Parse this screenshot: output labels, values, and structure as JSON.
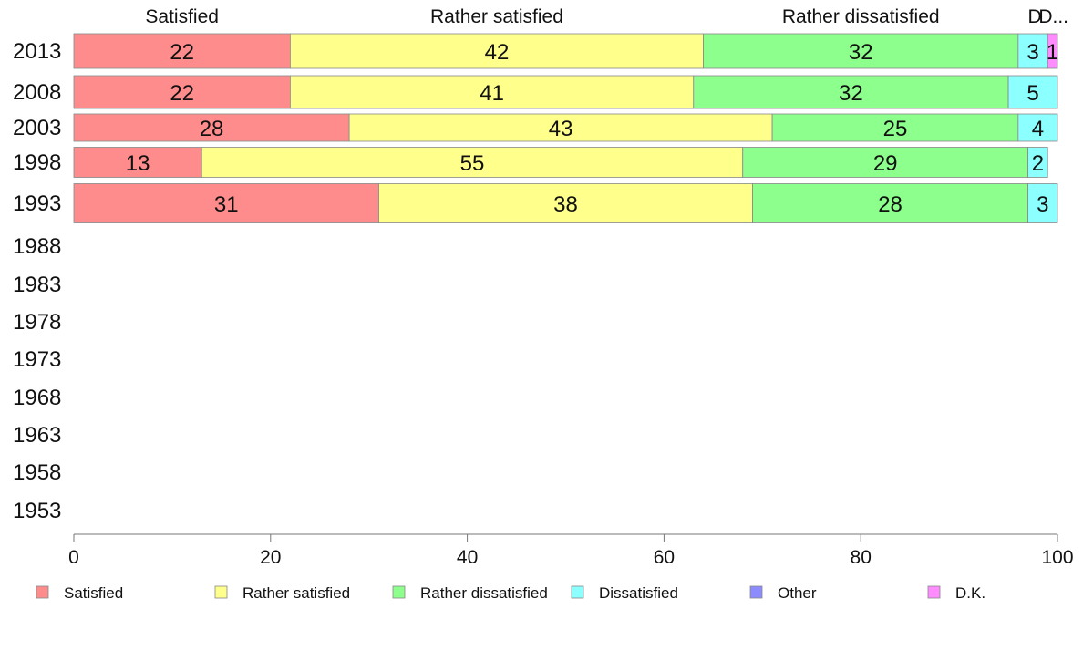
{
  "chart_data": {
    "type": "bar",
    "orientation": "horizontal",
    "stacked": true,
    "categories": [
      "2013",
      "2008",
      "2003",
      "1998",
      "1993",
      "1988",
      "1983",
      "1978",
      "1973",
      "1968",
      "1963",
      "1958",
      "1953"
    ],
    "series": [
      {
        "name": "Satisfied",
        "color": "#ff8c8c",
        "values": [
          22,
          22,
          28,
          13,
          31,
          null,
          null,
          null,
          null,
          null,
          null,
          null,
          null
        ]
      },
      {
        "name": "Rather satisfied",
        "color": "#ffff8c",
        "values": [
          42,
          41,
          43,
          55,
          38,
          null,
          null,
          null,
          null,
          null,
          null,
          null,
          null
        ]
      },
      {
        "name": "Rather dissatisfied",
        "color": "#8cff8c",
        "values": [
          32,
          32,
          25,
          29,
          28,
          null,
          null,
          null,
          null,
          null,
          null,
          null,
          null
        ]
      },
      {
        "name": "Dissatisfied",
        "color": "#8cffff",
        "values": [
          3,
          5,
          4,
          2,
          3,
          null,
          null,
          null,
          null,
          null,
          null,
          null,
          null
        ]
      },
      {
        "name": "Other",
        "color": "#8c8cff",
        "values": [
          0,
          0,
          0,
          0,
          0,
          null,
          null,
          null,
          null,
          null,
          null,
          null,
          null
        ]
      },
      {
        "name": "D.K.",
        "color": "#ff8cff",
        "values": [
          1,
          0,
          0,
          0,
          0,
          null,
          null,
          null,
          null,
          null,
          null,
          null,
          null
        ]
      }
    ],
    "top_labels": [
      "Satisfied",
      "Rather satisfied",
      "Rather dissatisfied",
      "Dissatisfied",
      "D.K."
    ],
    "top_labels_display": [
      "Satisfied",
      "Rather satisfied",
      "Rather dissatisfied",
      "D",
      "D..."
    ],
    "xlim": [
      0,
      100
    ],
    "xticks": [
      0,
      20,
      40,
      60,
      80,
      100
    ],
    "grid": false,
    "legend_position": "bottom"
  }
}
